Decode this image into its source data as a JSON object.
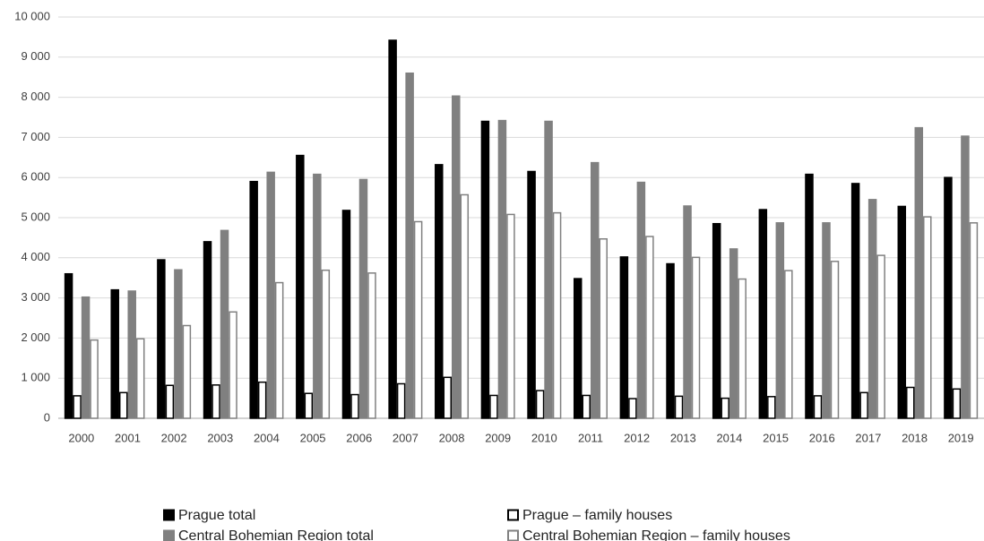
{
  "chart_data": {
    "type": "bar",
    "categories": [
      "2000",
      "2001",
      "2002",
      "2003",
      "2004",
      "2005",
      "2006",
      "2007",
      "2008",
      "2009",
      "2010",
      "2011",
      "2012",
      "2013",
      "2014",
      "2015",
      "2016",
      "2017",
      "2018",
      "2019"
    ],
    "series": [
      {
        "name": "Prague total",
        "color": "#000000",
        "edgecolor": "#000000",
        "values": [
          3600,
          3200,
          3950,
          4400,
          5900,
          6550,
          5180,
          9420,
          6320,
          7400,
          6150,
          3480,
          4020,
          3850,
          4850,
          5200,
          6080,
          5850,
          5280,
          6000
        ]
      },
      {
        "name": "Prague – family houses",
        "color": "#ffffff",
        "edgecolor": "#000000",
        "values": [
          560,
          640,
          820,
          830,
          900,
          620,
          590,
          860,
          1020,
          570,
          690,
          570,
          490,
          550,
          500,
          540,
          560,
          640,
          770,
          730
        ]
      },
      {
        "name": "Central Bohemian Region total",
        "color": "#808080",
        "edgecolor": "#808080",
        "values": [
          3020,
          3170,
          3700,
          4680,
          6130,
          6080,
          5950,
          8600,
          8030,
          7420,
          7400,
          6370,
          5880,
          5290,
          4220,
          4870,
          4870,
          5450,
          7240,
          7030
        ]
      },
      {
        "name": "Central Bohemian Region – family houses",
        "color": "#ffffff",
        "edgecolor": "#808080",
        "values": [
          1950,
          1980,
          2310,
          2650,
          3380,
          3690,
          3620,
          4900,
          5570,
          5080,
          5120,
          4470,
          4530,
          4010,
          3470,
          3680,
          3910,
          4060,
          5020,
          4870
        ]
      }
    ],
    "ylim": [
      0,
      10000
    ],
    "yticks": [
      0,
      {
        "value": 1000,
        "label": "1 000"
      },
      {
        "value": 2000,
        "label": "2 000"
      },
      {
        "value": 3000,
        "label": "3 000"
      },
      {
        "value": 4000,
        "label": "4 000"
      },
      {
        "value": 5000,
        "label": "5 000"
      },
      {
        "value": 6000,
        "label": "6 000"
      },
      {
        "value": 7000,
        "label": "7 000"
      },
      {
        "value": 8000,
        "label": "8 000"
      },
      {
        "value": 9000,
        "label": "9 000"
      },
      {
        "value": 10000,
        "label": "10 000"
      }
    ],
    "grid": true,
    "legend": "bottom"
  }
}
